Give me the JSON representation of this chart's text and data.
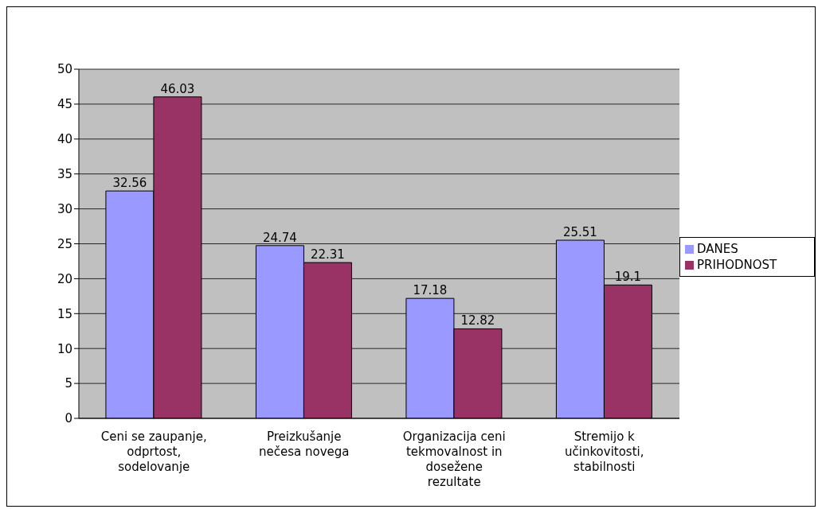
{
  "chart_data": {
    "type": "bar",
    "categories": [
      "Ceni se zaupanje, odprtost, sodelovanje",
      "Preizkušanje nečesa novega",
      "Organizacija ceni tekmovalnost in dosežene rezultate",
      "Stremijo k učinkovitosti, stabilnosti"
    ],
    "series": [
      {
        "name": "DANES",
        "color": "#9999ff",
        "values": [
          32.56,
          24.74,
          17.18,
          25.51
        ]
      },
      {
        "name": "PRIHODNOST",
        "color": "#993366",
        "values": [
          46.03,
          22.31,
          12.82,
          19.1
        ]
      }
    ],
    "ylim": [
      0,
      50
    ],
    "yticks": [
      0,
      5,
      10,
      15,
      20,
      25,
      30,
      35,
      40,
      45,
      50
    ],
    "grid": "y",
    "legend": "right",
    "data_labels": true
  }
}
